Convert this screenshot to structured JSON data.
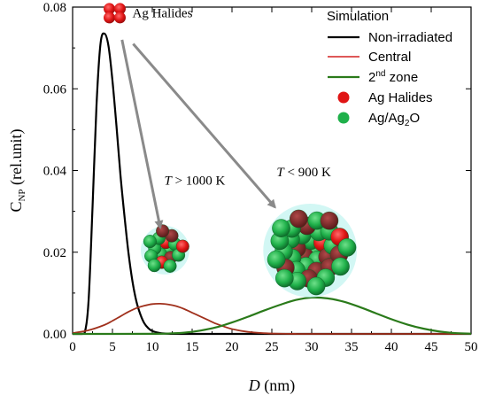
{
  "chart_data": {
    "type": "line",
    "xlabel": "D (nm)",
    "xlabel_symbol": "D",
    "xlabel_unit": " (nm)",
    "ylabel": "CNP (rel.unit)",
    "ylabel_main": "C",
    "ylabel_sub": "NP",
    "ylabel_unit": " (rel.unit)",
    "xlim": [
      0,
      50
    ],
    "ylim": [
      0,
      0.08
    ],
    "xticks": [
      "0",
      "5",
      "10",
      "15",
      "20",
      "25",
      "30",
      "35",
      "40",
      "45",
      "50"
    ],
    "yticks": [
      "0.00",
      "0.02",
      "0.04",
      "0.06",
      "0.08"
    ],
    "grid": false,
    "legend_position": "top-right",
    "legend_title": "Simulation",
    "series": [
      {
        "name": "Non-irradiated",
        "color": "#000000",
        "x": [
          0,
          1,
          1.5,
          2,
          2.5,
          3,
          3.5,
          4,
          4.5,
          5,
          5.5,
          6,
          6.5,
          7,
          7.5,
          8,
          8.5,
          9,
          9.5,
          10,
          11,
          12,
          14,
          16,
          20,
          50
        ],
        "y": [
          0,
          0,
          0.0001,
          0.008,
          0.031,
          0.056,
          0.071,
          0.0735,
          0.0705,
          0.062,
          0.051,
          0.039,
          0.029,
          0.02,
          0.013,
          0.008,
          0.0048,
          0.0026,
          0.0014,
          0.0007,
          0.0002,
          5e-05,
          0,
          0,
          0,
          0
        ]
      },
      {
        "name": "Central",
        "color": "#d32020",
        "x": [
          0,
          2,
          4,
          5,
          6,
          7,
          8,
          9,
          10,
          11,
          12,
          13,
          14,
          15,
          16,
          17,
          18,
          19,
          20,
          22,
          24,
          26,
          28,
          30,
          50
        ],
        "y": [
          0.0002,
          0.0009,
          0.0022,
          0.0032,
          0.0043,
          0.0054,
          0.0063,
          0.0069,
          0.0073,
          0.0074,
          0.0072,
          0.0068,
          0.0061,
          0.0052,
          0.0043,
          0.0034,
          0.0025,
          0.0018,
          0.0012,
          0.0005,
          0.00018,
          5e-05,
          1e-05,
          0,
          0
        ]
      },
      {
        "name": "2nd zone",
        "name_main": "2",
        "name_sup": "nd",
        "name_rest": " zone",
        "color": "#2a7a1a",
        "x": [
          0,
          10,
          12,
          14,
          16,
          18,
          20,
          22,
          24,
          26,
          28,
          30,
          32,
          34,
          36,
          38,
          40,
          42,
          44,
          46,
          48,
          50
        ],
        "y": [
          0,
          2e-05,
          0.0001,
          0.0003,
          0.0008,
          0.0016,
          0.0028,
          0.0042,
          0.0057,
          0.0071,
          0.0083,
          0.0089,
          0.0087,
          0.0079,
          0.0066,
          0.0051,
          0.0036,
          0.0023,
          0.0013,
          0.0006,
          0.0002,
          5e-05
        ]
      }
    ],
    "marker_legend": [
      {
        "name": "Ag Halides",
        "color": "#e01515"
      },
      {
        "name": "Ag/Ag2O",
        "name_main": "Ag/Ag",
        "name_sub": "2",
        "name_rest": "O",
        "color": "#1fb04a"
      }
    ],
    "annotations": [
      {
        "text": "Ag Halides",
        "x": 7.5,
        "y": 0.0775
      },
      {
        "text": "T > 1000 K",
        "symbol": "T",
        "rest": " > 1000 K",
        "x": 11.5,
        "y": 0.0365
      },
      {
        "text": "T < 900 K",
        "symbol": "T",
        "rest": " < 900 K",
        "x": 25.6,
        "y": 0.0386
      }
    ],
    "arrows": [
      {
        "from": [
          6.2,
          0.072
        ],
        "to": [
          11,
          0.026
        ]
      },
      {
        "from": [
          7.6,
          0.071
        ],
        "to": [
          25.4,
          0.031
        ]
      }
    ],
    "clusters": [
      {
        "label": "small cluster",
        "x": 11.6,
        "y": 0.0205,
        "n": 16,
        "radius_x": 2.9
      },
      {
        "label": "large cluster",
        "x": 29.8,
        "y": 0.0204,
        "n": 36,
        "radius_x": 5.6
      }
    ]
  }
}
